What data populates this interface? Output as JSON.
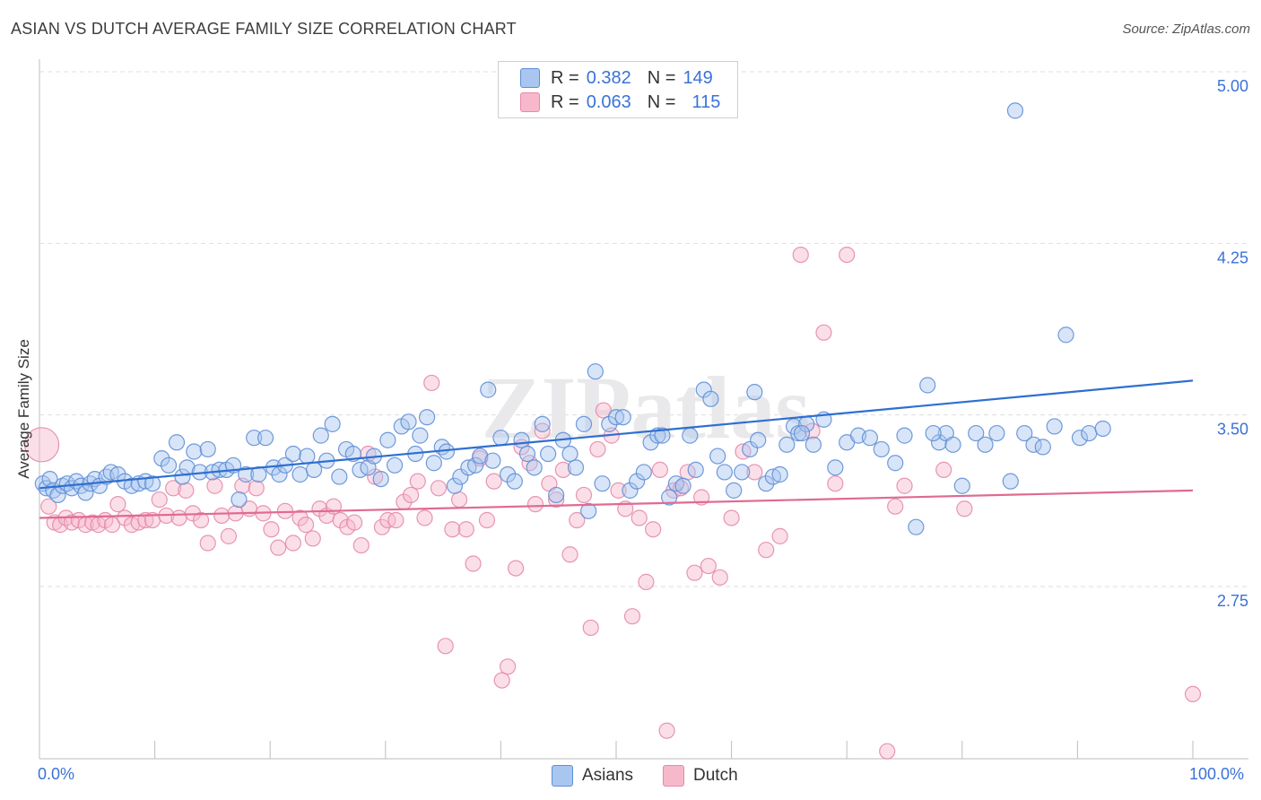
{
  "title": "ASIAN VS DUTCH AVERAGE FAMILY SIZE CORRELATION CHART",
  "source": "Source: ZipAtlas.com",
  "watermark": "ZIPatlas",
  "legend": {
    "rows": [
      {
        "r_label": "R =",
        "r_value": "0.382",
        "n_label": "N =",
        "n_value": "149",
        "color": "#a9c6f0"
      },
      {
        "r_label": "R =",
        "r_value": "0.063",
        "n_label": "N =",
        "n_value": "115",
        "color": "#f7b8cc"
      }
    ]
  },
  "bottom_legend": [
    {
      "label": "Asians",
      "color": "#a9c6f0"
    },
    {
      "label": "Dutch",
      "color": "#f7b8cc"
    }
  ],
  "chart_data": {
    "type": "scatter",
    "title": "ASIAN VS DUTCH AVERAGE FAMILY SIZE CORRELATION CHART",
    "xlabel": "",
    "ylabel": "Average Family Size",
    "xlim": [
      0,
      100
    ],
    "ylim": [
      2.0,
      5.08
    ],
    "x_tick_labels": [
      "0.0%",
      "100.0%"
    ],
    "y_ticks": [
      2.75,
      3.5,
      4.25,
      5.0
    ],
    "y_tick_labels": [
      "2.75",
      "3.50",
      "4.25",
      "5.00"
    ],
    "grid": "horizontal dashed",
    "legend_position": "top-center",
    "colors": {
      "asians_fill": "#a9c6f0",
      "asians_edge": "#5f8fd6",
      "asians_line": "#2f6fd1",
      "dutch_fill": "#f7b8cc",
      "dutch_edge": "#e68aa8",
      "dutch_line": "#e06a92",
      "tick_text": "#3a72d8"
    },
    "series": [
      {
        "name": "Asians",
        "trend": {
          "x": [
            0,
            100
          ],
          "y": [
            3.18,
            3.65
          ]
        },
        "points": [
          [
            0.3,
            3.2
          ],
          [
            0.6,
            3.18
          ],
          [
            0.9,
            3.22
          ],
          [
            1.2,
            3.17
          ],
          [
            1.6,
            3.15
          ],
          [
            2.0,
            3.19
          ],
          [
            2.4,
            3.2
          ],
          [
            2.8,
            3.18
          ],
          [
            3.2,
            3.21
          ],
          [
            3.6,
            3.19
          ],
          [
            4.0,
            3.16
          ],
          [
            4.4,
            3.2
          ],
          [
            4.8,
            3.22
          ],
          [
            5.2,
            3.19
          ],
          [
            5.8,
            3.23
          ],
          [
            6.2,
            3.25
          ],
          [
            6.8,
            3.24
          ],
          [
            7.4,
            3.21
          ],
          [
            8.0,
            3.19
          ],
          [
            8.6,
            3.2
          ],
          [
            9.2,
            3.21
          ],
          [
            9.8,
            3.2
          ],
          [
            10.6,
            3.31
          ],
          [
            11.2,
            3.28
          ],
          [
            11.9,
            3.38
          ],
          [
            12.4,
            3.23
          ],
          [
            12.8,
            3.27
          ],
          [
            13.4,
            3.34
          ],
          [
            13.9,
            3.25
          ],
          [
            14.6,
            3.35
          ],
          [
            15.0,
            3.25
          ],
          [
            15.6,
            3.26
          ],
          [
            16.2,
            3.26
          ],
          [
            16.8,
            3.28
          ],
          [
            17.3,
            3.13
          ],
          [
            17.9,
            3.24
          ],
          [
            18.6,
            3.4
          ],
          [
            19.0,
            3.24
          ],
          [
            19.6,
            3.4
          ],
          [
            20.3,
            3.27
          ],
          [
            20.8,
            3.24
          ],
          [
            21.3,
            3.28
          ],
          [
            22.0,
            3.33
          ],
          [
            22.6,
            3.24
          ],
          [
            23.2,
            3.32
          ],
          [
            23.8,
            3.26
          ],
          [
            24.4,
            3.41
          ],
          [
            24.9,
            3.3
          ],
          [
            25.4,
            3.46
          ],
          [
            26.0,
            3.23
          ],
          [
            26.6,
            3.35
          ],
          [
            27.2,
            3.33
          ],
          [
            27.8,
            3.26
          ],
          [
            28.5,
            3.27
          ],
          [
            29.0,
            3.32
          ],
          [
            29.6,
            3.22
          ],
          [
            30.2,
            3.39
          ],
          [
            30.8,
            3.28
          ],
          [
            31.4,
            3.45
          ],
          [
            32.0,
            3.47
          ],
          [
            32.6,
            3.33
          ],
          [
            33.0,
            3.41
          ],
          [
            33.6,
            3.49
          ],
          [
            34.2,
            3.29
          ],
          [
            34.9,
            3.36
          ],
          [
            35.3,
            3.34
          ],
          [
            36.0,
            3.19
          ],
          [
            36.5,
            3.23
          ],
          [
            37.2,
            3.27
          ],
          [
            37.8,
            3.28
          ],
          [
            38.2,
            3.32
          ],
          [
            38.9,
            3.61
          ],
          [
            39.3,
            3.3
          ],
          [
            40.0,
            3.4
          ],
          [
            40.6,
            3.24
          ],
          [
            41.2,
            3.21
          ],
          [
            41.8,
            3.39
          ],
          [
            42.3,
            3.33
          ],
          [
            42.9,
            3.27
          ],
          [
            43.6,
            3.46
          ],
          [
            44.1,
            3.33
          ],
          [
            44.8,
            3.15
          ],
          [
            45.4,
            3.39
          ],
          [
            46.0,
            3.33
          ],
          [
            46.5,
            3.27
          ],
          [
            47.2,
            3.46
          ],
          [
            47.6,
            3.08
          ],
          [
            48.2,
            3.69
          ],
          [
            48.8,
            3.2
          ],
          [
            49.4,
            3.46
          ],
          [
            50.0,
            3.49
          ],
          [
            50.6,
            3.49
          ],
          [
            51.2,
            3.17
          ],
          [
            51.8,
            3.21
          ],
          [
            52.4,
            3.25
          ],
          [
            53.0,
            3.38
          ],
          [
            53.6,
            3.41
          ],
          [
            54.0,
            3.41
          ],
          [
            54.6,
            3.14
          ],
          [
            55.2,
            3.2
          ],
          [
            55.8,
            3.19
          ],
          [
            56.4,
            3.41
          ],
          [
            56.9,
            3.26
          ],
          [
            57.6,
            3.61
          ],
          [
            58.2,
            3.57
          ],
          [
            58.8,
            3.32
          ],
          [
            59.4,
            3.25
          ],
          [
            60.2,
            3.17
          ],
          [
            60.9,
            3.25
          ],
          [
            61.6,
            3.35
          ],
          [
            62.3,
            3.39
          ],
          [
            63.0,
            3.2
          ],
          [
            63.6,
            3.23
          ],
          [
            64.2,
            3.24
          ],
          [
            64.8,
            3.37
          ],
          [
            65.4,
            3.45
          ],
          [
            65.8,
            3.42
          ],
          [
            66.5,
            3.46
          ],
          [
            67.1,
            3.37
          ],
          [
            68.0,
            3.48
          ],
          [
            69.0,
            3.27
          ],
          [
            70.0,
            3.38
          ],
          [
            71.0,
            3.41
          ],
          [
            72.0,
            3.4
          ],
          [
            73.0,
            3.35
          ],
          [
            74.2,
            3.29
          ],
          [
            75.0,
            3.41
          ],
          [
            76.0,
            3.01
          ],
          [
            77.0,
            3.63
          ],
          [
            78.0,
            3.38
          ],
          [
            78.6,
            3.42
          ],
          [
            79.2,
            3.37
          ],
          [
            80.0,
            3.19
          ],
          [
            81.2,
            3.42
          ],
          [
            82.0,
            3.37
          ],
          [
            83.0,
            3.42
          ],
          [
            84.2,
            3.21
          ],
          [
            85.4,
            3.42
          ],
          [
            86.2,
            3.37
          ],
          [
            87.0,
            3.36
          ],
          [
            88.0,
            3.45
          ],
          [
            89.0,
            3.85
          ],
          [
            90.2,
            3.4
          ],
          [
            91.0,
            3.42
          ],
          [
            92.2,
            3.44
          ],
          [
            62.0,
            3.6
          ],
          [
            66.1,
            3.42
          ],
          [
            77.5,
            3.42
          ],
          [
            84.6,
            4.83
          ]
        ]
      },
      {
        "name": "Dutch",
        "trend": {
          "x": [
            0,
            100
          ],
          "y": [
            3.05,
            3.17
          ]
        },
        "points": [
          [
            0.2,
            3.37
          ],
          [
            0.8,
            3.1
          ],
          [
            1.3,
            3.03
          ],
          [
            1.8,
            3.02
          ],
          [
            2.3,
            3.05
          ],
          [
            2.8,
            3.03
          ],
          [
            3.4,
            3.04
          ],
          [
            4.0,
            3.02
          ],
          [
            4.6,
            3.03
          ],
          [
            5.1,
            3.02
          ],
          [
            5.7,
            3.04
          ],
          [
            6.3,
            3.02
          ],
          [
            6.8,
            3.11
          ],
          [
            7.4,
            3.05
          ],
          [
            8.0,
            3.02
          ],
          [
            8.6,
            3.03
          ],
          [
            9.2,
            3.04
          ],
          [
            9.8,
            3.04
          ],
          [
            10.4,
            3.13
          ],
          [
            11.0,
            3.06
          ],
          [
            11.6,
            3.18
          ],
          [
            12.1,
            3.05
          ],
          [
            12.7,
            3.17
          ],
          [
            13.3,
            3.07
          ],
          [
            14.0,
            3.04
          ],
          [
            14.6,
            2.94
          ],
          [
            15.2,
            3.19
          ],
          [
            15.8,
            3.06
          ],
          [
            16.4,
            2.97
          ],
          [
            17.0,
            3.07
          ],
          [
            17.6,
            3.19
          ],
          [
            18.2,
            3.09
          ],
          [
            18.8,
            3.18
          ],
          [
            19.4,
            3.07
          ],
          [
            20.1,
            3.0
          ],
          [
            20.7,
            2.92
          ],
          [
            21.3,
            3.08
          ],
          [
            22.0,
            2.94
          ],
          [
            22.6,
            3.05
          ],
          [
            23.1,
            3.02
          ],
          [
            23.7,
            2.96
          ],
          [
            24.3,
            3.09
          ],
          [
            24.9,
            3.06
          ],
          [
            25.5,
            3.1
          ],
          [
            26.1,
            3.04
          ],
          [
            26.7,
            3.01
          ],
          [
            27.3,
            3.03
          ],
          [
            27.9,
            2.93
          ],
          [
            28.5,
            3.33
          ],
          [
            29.1,
            3.23
          ],
          [
            29.7,
            3.01
          ],
          [
            30.2,
            3.04
          ],
          [
            30.9,
            3.04
          ],
          [
            31.6,
            3.12
          ],
          [
            32.2,
            3.15
          ],
          [
            32.8,
            3.21
          ],
          [
            33.4,
            3.05
          ],
          [
            34.0,
            3.64
          ],
          [
            34.6,
            3.18
          ],
          [
            35.2,
            2.49
          ],
          [
            35.8,
            3.0
          ],
          [
            36.4,
            3.13
          ],
          [
            37.0,
            3.0
          ],
          [
            37.6,
            2.85
          ],
          [
            38.2,
            3.31
          ],
          [
            38.8,
            3.04
          ],
          [
            39.4,
            3.21
          ],
          [
            40.1,
            2.34
          ],
          [
            40.6,
            2.4
          ],
          [
            41.3,
            2.83
          ],
          [
            41.8,
            3.36
          ],
          [
            42.5,
            3.29
          ],
          [
            43.0,
            3.11
          ],
          [
            43.6,
            3.43
          ],
          [
            44.2,
            3.2
          ],
          [
            44.8,
            3.13
          ],
          [
            45.4,
            3.26
          ],
          [
            46.0,
            2.89
          ],
          [
            46.6,
            3.04
          ],
          [
            47.2,
            3.15
          ],
          [
            47.8,
            2.57
          ],
          [
            48.4,
            3.35
          ],
          [
            48.9,
            3.52
          ],
          [
            49.6,
            3.41
          ],
          [
            50.2,
            3.17
          ],
          [
            50.8,
            3.09
          ],
          [
            51.4,
            2.62
          ],
          [
            52.0,
            3.05
          ],
          [
            52.6,
            2.77
          ],
          [
            53.2,
            3.0
          ],
          [
            53.8,
            3.26
          ],
          [
            54.4,
            2.12
          ],
          [
            55.0,
            3.17
          ],
          [
            55.6,
            3.18
          ],
          [
            56.2,
            3.25
          ],
          [
            56.8,
            2.81
          ],
          [
            57.4,
            3.14
          ],
          [
            58.0,
            2.84
          ],
          [
            59.0,
            2.79
          ],
          [
            60.0,
            3.05
          ],
          [
            61.0,
            3.34
          ],
          [
            62.0,
            3.25
          ],
          [
            63.0,
            2.91
          ],
          [
            64.2,
            2.97
          ],
          [
            66.0,
            4.2
          ],
          [
            67.0,
            3.43
          ],
          [
            68.0,
            3.86
          ],
          [
            69.0,
            3.2
          ],
          [
            70.0,
            4.2
          ],
          [
            73.5,
            2.03
          ],
          [
            74.2,
            3.1
          ],
          [
            75.0,
            3.19
          ],
          [
            78.4,
            3.26
          ],
          [
            80.2,
            3.09
          ],
          [
            100.0,
            2.28
          ]
        ]
      }
    ]
  }
}
